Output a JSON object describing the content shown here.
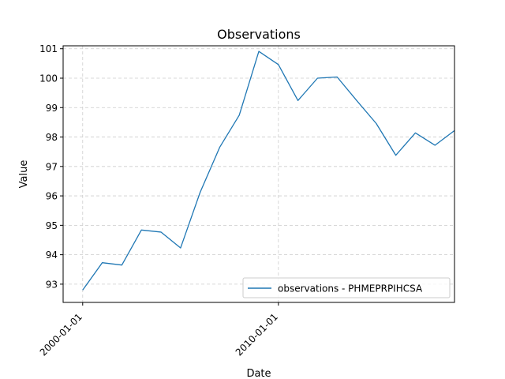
{
  "chart_data": {
    "type": "line",
    "title": "Observations",
    "xlabel": "Date",
    "ylabel": "Value",
    "x": [
      "2000-01-01",
      "2001-01-01",
      "2002-01-01",
      "2003-01-01",
      "2004-01-01",
      "2005-01-01",
      "2006-01-01",
      "2007-01-01",
      "2008-01-01",
      "2009-01-01",
      "2010-01-01",
      "2011-01-01",
      "2012-01-01",
      "2013-01-01",
      "2014-01-01",
      "2015-01-01",
      "2016-01-01",
      "2017-01-01",
      "2018-01-01",
      "2019-01-01"
    ],
    "series": [
      {
        "name": "observations - PHMEPRPIHCSA",
        "color": "#1f77b4",
        "values": [
          92.8,
          93.73,
          93.65,
          94.84,
          94.77,
          94.23,
          96.12,
          97.65,
          98.74,
          100.91,
          100.46,
          99.24,
          100.0,
          100.04,
          99.24,
          98.46,
          97.38,
          98.14,
          97.72,
          98.22
        ]
      }
    ],
    "xlim": [
      "1999-01-01",
      "2019-01-01"
    ],
    "ylim": [
      92.38,
      101.1
    ],
    "x_ticks": [
      "2000-01-01",
      "2010-01-01"
    ],
    "y_ticks": [
      93,
      94,
      95,
      96,
      97,
      98,
      99,
      100,
      101
    ],
    "grid": true,
    "legend_position": "lower right"
  }
}
